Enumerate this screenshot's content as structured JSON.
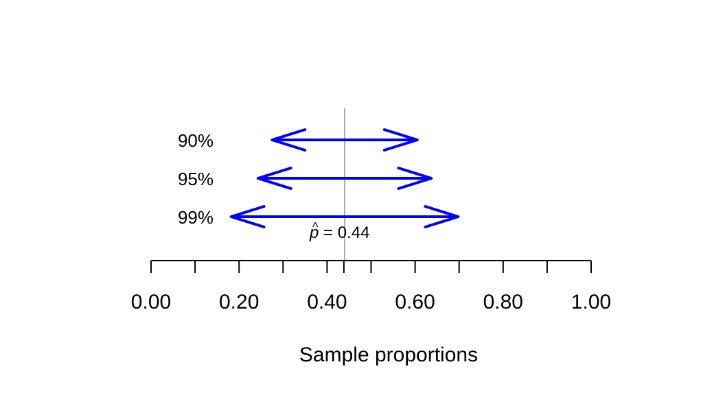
{
  "chart_data": {
    "type": "interval",
    "xlabel": "Sample proportions",
    "xlim": [
      0,
      1
    ],
    "major_ticks": [
      0,
      0.2,
      0.4,
      0.6,
      0.8,
      1.0
    ],
    "tick_labels": [
      "0.00",
      "0.20",
      "0.40",
      "0.60",
      "0.80",
      "1.00"
    ],
    "minor_ticks": [
      0.1,
      0.3,
      0.4382,
      0.5,
      0.7,
      0.9
    ],
    "estimate": {
      "value": 0.44,
      "symbol": "p",
      "label_rest": " = 0.44"
    },
    "intervals": [
      {
        "label": "90%",
        "lower": 0.275,
        "upper": 0.605
      },
      {
        "label": "95%",
        "lower": 0.243,
        "upper": 0.637
      },
      {
        "label": "99%",
        "lower": 0.182,
        "upper": 0.698
      }
    ],
    "colors": {
      "interval": "#0000ff",
      "reference_line": "#aaaaaa",
      "axis": "#000000"
    }
  }
}
